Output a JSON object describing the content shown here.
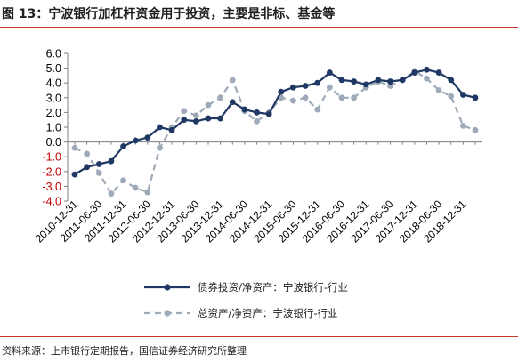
{
  "title": "图 13：宁波银行加杠杆资金用于投资，主要是非标、基金等",
  "source": "资料来源：上市银行定期报告，国信证券经济研究所整理",
  "colors": {
    "bond_series": "#1f3864",
    "asset_series": "#9eaab8",
    "negative_tick": "#c00000",
    "accent": "#c0392b"
  },
  "chart_data": {
    "type": "line",
    "x": [
      "2010-12-31",
      "2011-03-31",
      "2011-06-30",
      "2011-09-30",
      "2011-12-31",
      "2012-03-31",
      "2012-06-30",
      "2012-09-30",
      "2012-12-31",
      "2013-03-31",
      "2013-06-30",
      "2013-09-30",
      "2013-12-31",
      "2014-03-31",
      "2014-06-30",
      "2014-09-30",
      "2014-12-31",
      "2015-03-31",
      "2015-06-30",
      "2015-09-30",
      "2015-12-31",
      "2016-03-31",
      "2016-06-30",
      "2016-09-30",
      "2016-12-31",
      "2017-03-31",
      "2017-06-30",
      "2017-09-30",
      "2017-12-31",
      "2018-03-31",
      "2018-06-30",
      "2018-09-30",
      "2018-12-31",
      "2019-03-31"
    ],
    "xticklabels": [
      "2010-12-31",
      "2011-06-30",
      "2011-12-31",
      "2012-06-30",
      "2012-12-31",
      "2013-06-30",
      "2013-12-31",
      "2014-06-30",
      "2014-12-31",
      "2015-06-30",
      "2015-12-31",
      "2016-06-30",
      "2016-12-31",
      "2017-06-30",
      "2017-12-31",
      "2018-06-30",
      "2018-12-31"
    ],
    "yticklabels": [
      "6.0",
      "5.0",
      "4.0",
      "3.0",
      "2.0",
      "1.0",
      "0.0",
      "-1.0",
      "-2.0",
      "-3.0",
      "-4.0"
    ],
    "ylim": [
      -4,
      6
    ],
    "series": [
      {
        "name": "债券投资/净资产：宁波银行-行业",
        "style": "solid-marker",
        "values": [
          -2.2,
          -1.7,
          -1.5,
          -1.3,
          -0.3,
          0.1,
          0.3,
          1.0,
          0.8,
          1.5,
          1.4,
          1.6,
          1.6,
          2.7,
          2.2,
          2.0,
          1.9,
          3.4,
          3.7,
          3.8,
          4.0,
          4.7,
          4.2,
          4.1,
          3.9,
          4.2,
          4.1,
          4.2,
          4.7,
          4.9,
          4.7,
          4.2,
          3.2,
          3.0
        ]
      },
      {
        "name": "总资产/净资产：宁波银行-行业",
        "style": "dashed-marker",
        "values": [
          -0.4,
          -0.8,
          -2.1,
          -3.5,
          -2.6,
          -3.1,
          -3.4,
          -0.4,
          1.0,
          2.1,
          1.8,
          2.5,
          3.0,
          4.2,
          2.1,
          1.4,
          2.0,
          3.0,
          2.8,
          3.0,
          2.2,
          3.7,
          3.0,
          3.0,
          3.7,
          4.1,
          3.8,
          4.2,
          4.8,
          4.3,
          3.5,
          3.1,
          1.1,
          0.8
        ]
      }
    ],
    "legend_position": "bottom",
    "grid": false
  }
}
